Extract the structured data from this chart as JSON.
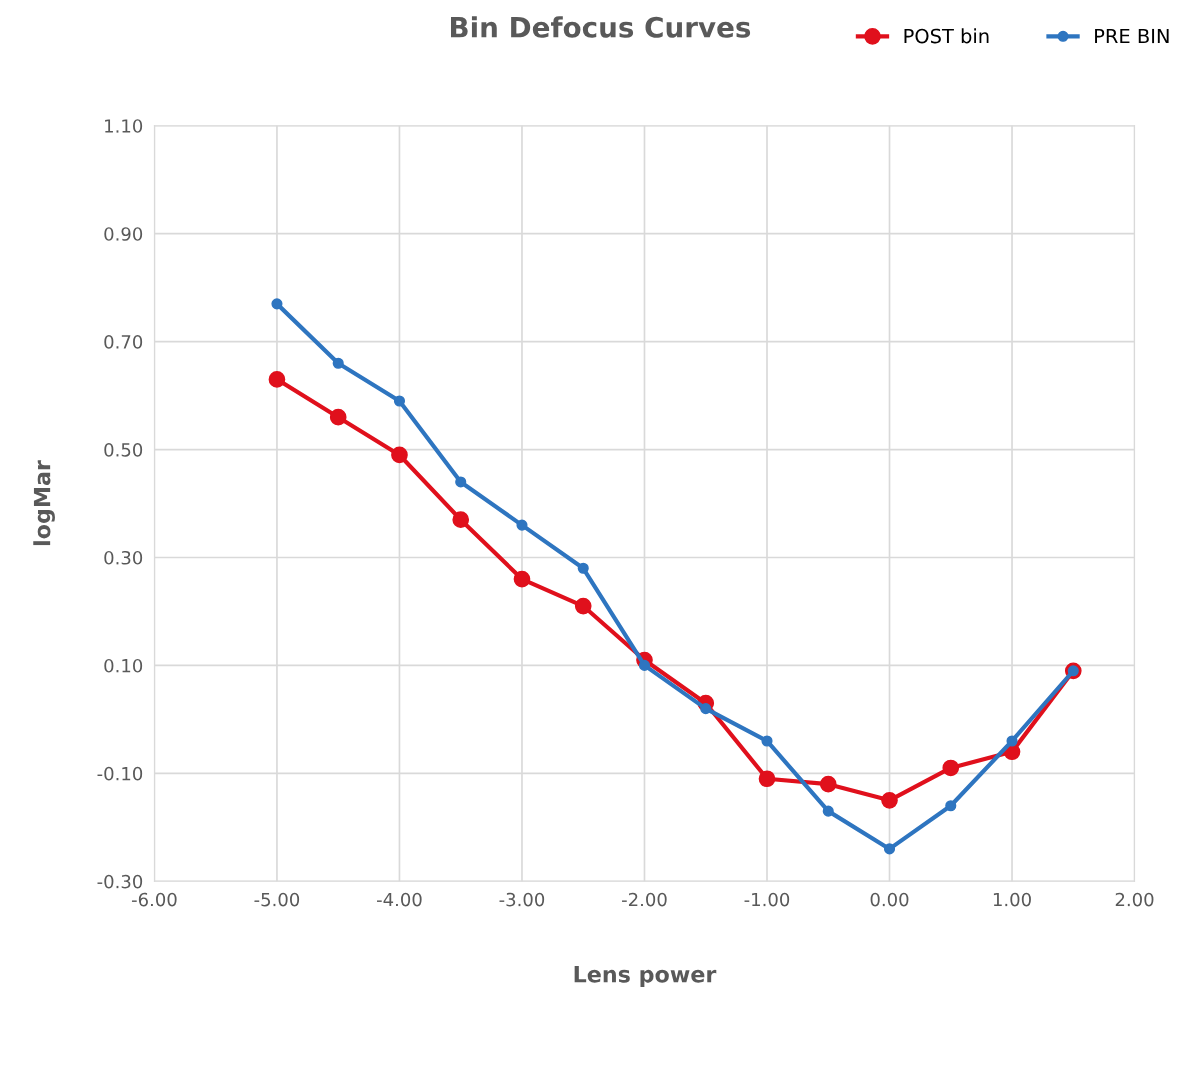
{
  "chart_data": {
    "type": "line",
    "title": "Bin Defocus Curves",
    "xlabel": "Lens power",
    "ylabel": "logMar",
    "x": [
      -5.0,
      -4.5,
      -4.0,
      -3.5,
      -3.0,
      -2.5,
      -2.0,
      -1.5,
      -1.0,
      -0.5,
      0.0,
      0.5,
      1.0,
      1.5
    ],
    "series": [
      {
        "name": "POST bin",
        "color": "#e0101c",
        "values": [
          0.63,
          0.56,
          0.49,
          0.37,
          0.26,
          0.21,
          0.11,
          0.03,
          -0.11,
          -0.12,
          -0.15,
          -0.09,
          -0.06,
          0.09
        ]
      },
      {
        "name": "PRE BIN",
        "color": "#2e75c0",
        "values": [
          0.77,
          0.66,
          0.59,
          0.44,
          0.36,
          0.28,
          0.1,
          0.02,
          -0.04,
          -0.17,
          -0.24,
          -0.16,
          -0.04,
          0.09
        ]
      }
    ],
    "xlim": [
      -6,
      2
    ],
    "xticks": [
      {
        "value": -6,
        "label": "-6.00"
      },
      {
        "value": -5,
        "label": "-5.00"
      },
      {
        "value": -4,
        "label": "-4.00"
      },
      {
        "value": -3,
        "label": "-3.00"
      },
      {
        "value": -2,
        "label": "-2.00"
      },
      {
        "value": -1,
        "label": "-1.00"
      },
      {
        "value": 0,
        "label": "0.00"
      },
      {
        "value": 1,
        "label": "1.00"
      },
      {
        "value": 2,
        "label": "2.00"
      }
    ],
    "ylim": [
      -0.3,
      1.1
    ],
    "yticks": [
      {
        "value": -0.3,
        "label": "-0.30"
      },
      {
        "value": -0.1,
        "label": "-0.10"
      },
      {
        "value": 0.1,
        "label": "0.10"
      },
      {
        "value": 0.3,
        "label": "0.30"
      },
      {
        "value": 0.5,
        "label": "0.50"
      },
      {
        "value": 0.7,
        "label": "0.70"
      },
      {
        "value": 0.9,
        "label": "0.90"
      },
      {
        "value": 1.1,
        "label": "1.10"
      }
    ],
    "grid": true,
    "legend": "top right",
    "marker": "circle",
    "line_style": "solid"
  }
}
